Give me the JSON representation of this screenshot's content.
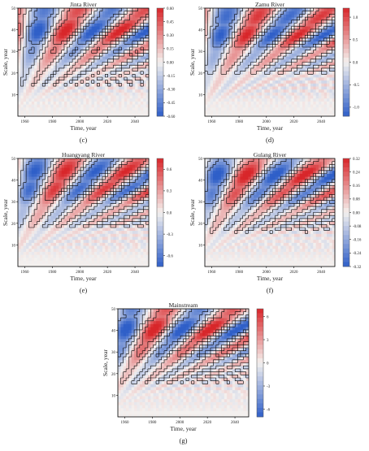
{
  "colors": {
    "neg_strong": "#2f5fc8",
    "neutral": "#f4f1ef",
    "pos_strong": "#d8262a",
    "contour": "#000000",
    "text": "#222222"
  },
  "chart_data": [
    {
      "type": "heatmap",
      "panel_label": "(c)",
      "title": "Jinta River",
      "xlabel": "Time, year",
      "ylabel": "Scale, year",
      "xlim": [
        1955,
        2050
      ],
      "ylim": [
        0,
        50
      ],
      "x_ticks": [
        1960,
        1980,
        2000,
        2020,
        2040
      ],
      "y_ticks": [
        10,
        20,
        30,
        40,
        50
      ],
      "colorbar_ticks": [
        "0.60",
        "0.45",
        "0.30",
        "0.15",
        "0.00",
        "-0.15",
        "-0.30",
        "-0.45",
        "-0.60"
      ],
      "colorbar_range": [
        -0.6,
        0.6
      ],
      "contour_lines": true
    },
    {
      "type": "heatmap",
      "panel_label": "(d)",
      "title": "Zamu River",
      "xlabel": "Time, year",
      "ylabel": "Scale, year",
      "xlim": [
        1955,
        2050
      ],
      "ylim": [
        0,
        50
      ],
      "x_ticks": [
        1960,
        1980,
        2000,
        2020,
        2040
      ],
      "y_ticks": [
        10,
        20,
        30,
        40,
        50
      ],
      "colorbar_ticks": [
        "1.0",
        "0.5",
        "0.0",
        "-0.5",
        "-1.0"
      ],
      "colorbar_range": [
        -1.2,
        1.2
      ],
      "contour_lines": true
    },
    {
      "type": "heatmap",
      "panel_label": "(e)",
      "title": "Huangyang River",
      "xlabel": "Time, year",
      "ylabel": "Scale, year",
      "xlim": [
        1955,
        2050
      ],
      "ylim": [
        0,
        50
      ],
      "x_ticks": [
        1960,
        1980,
        2000,
        2020,
        2040
      ],
      "y_ticks": [
        10,
        20,
        30,
        40,
        50
      ],
      "colorbar_ticks": [
        "0.6",
        "0.3",
        "0.0",
        "-0.3",
        "-0.6"
      ],
      "colorbar_range": [
        -0.75,
        0.75
      ],
      "contour_lines": true
    },
    {
      "type": "heatmap",
      "panel_label": "(f)",
      "title": "Gulang River",
      "xlabel": "Time, year",
      "ylabel": "Scale, year",
      "xlim": [
        1955,
        2050
      ],
      "ylim": [
        0,
        50
      ],
      "x_ticks": [
        1960,
        1980,
        2000,
        2020,
        2040
      ],
      "y_ticks": [
        10,
        20,
        30,
        40,
        50
      ],
      "colorbar_ticks": [
        "0.32",
        "0.24",
        "0.16",
        "0.08",
        "0.00",
        "-0.08",
        "-0.16",
        "-0.24",
        "-0.32"
      ],
      "colorbar_range": [
        -0.32,
        0.32
      ],
      "contour_lines": true
    },
    {
      "type": "heatmap",
      "panel_label": "(g)",
      "title": "Mainstream",
      "xlabel": "Time, year",
      "ylabel": "Scale, year",
      "xlim": [
        1955,
        2050
      ],
      "ylim": [
        0,
        50
      ],
      "x_ticks": [
        1960,
        1980,
        2000,
        2020,
        2040
      ],
      "y_ticks": [
        10,
        20,
        30,
        40,
        50
      ],
      "colorbar_ticks": [
        "6",
        "3",
        "0",
        "-3",
        "-6"
      ],
      "colorbar_range": [
        -7,
        7
      ],
      "contour_lines": true
    }
  ]
}
